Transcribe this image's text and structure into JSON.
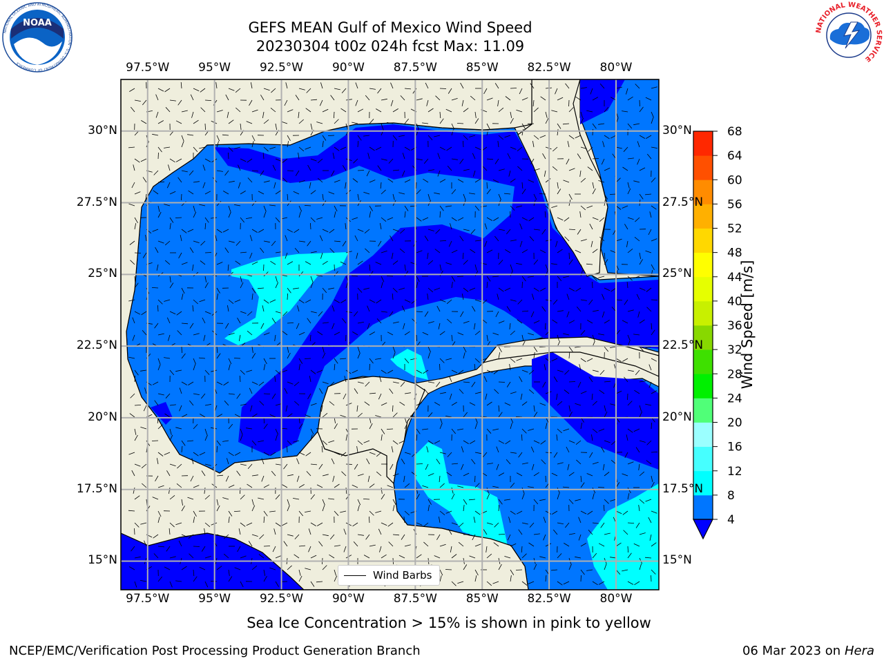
{
  "title_line1": "GEFS MEAN Gulf of Mexico Wind Speed",
  "title_line2": "20230304 t00z 024h fcst   Max: 11.09",
  "caption": "Sea Ice Concentration > 15% is shown in pink to yellow",
  "footer": {
    "left": "NCEP/EMC/Verification Post Processing Product Generation Branch",
    "date": "06 Mar 2023 on",
    "host": "Hera"
  },
  "logos": {
    "left": "noaa-logo",
    "right": "nws-logo",
    "left_text": "NOAA",
    "left_ring_text": "NATIONAL OCEANIC AND ATMOSPHERIC ADMINISTRATION · U.S. DEPARTMENT OF COMMERCE",
    "right_ring_text": "NATIONAL WEATHER SERVICE"
  },
  "map": {
    "lon_range": [
      -98.5,
      -78.4
    ],
    "lat_range": [
      14,
      31.8
    ],
    "lon_ticks": [
      "97.5°W",
      "95°W",
      "92.5°W",
      "90°W",
      "87.5°W",
      "85°W",
      "82.5°W",
      "80°W"
    ],
    "lon_values": [
      -97.5,
      -95,
      -92.5,
      -90,
      -87.5,
      -85,
      -82.5,
      -80
    ],
    "lat_ticks": [
      "15°N",
      "17.5°N",
      "20°N",
      "22.5°N",
      "25°N",
      "27.5°N",
      "30°N"
    ],
    "lat_values": [
      15,
      17.5,
      20,
      22.5,
      25,
      27.5,
      30
    ],
    "land_color": "#efeedd",
    "grid_color": "#b0b0b0",
    "legend_label": "Wind Barbs"
  },
  "colorbar": {
    "label": "Wind Speed [m/s]",
    "ticks": [
      "4",
      "8",
      "12",
      "16",
      "20",
      "24",
      "28",
      "32",
      "36",
      "40",
      "44",
      "48",
      "52",
      "56",
      "60",
      "64",
      "68"
    ],
    "colors": [
      "#0076ff",
      "#00ffff",
      "#46ffff",
      "#9bffff",
      "#50ff78",
      "#00f000",
      "#3ee000",
      "#88d800",
      "#c8f000",
      "#e6ff00",
      "#ffff00",
      "#ffd800",
      "#ffb000",
      "#ff8c00",
      "#ff5000",
      "#ff2800"
    ],
    "extend_color": "#0000ff"
  }
}
